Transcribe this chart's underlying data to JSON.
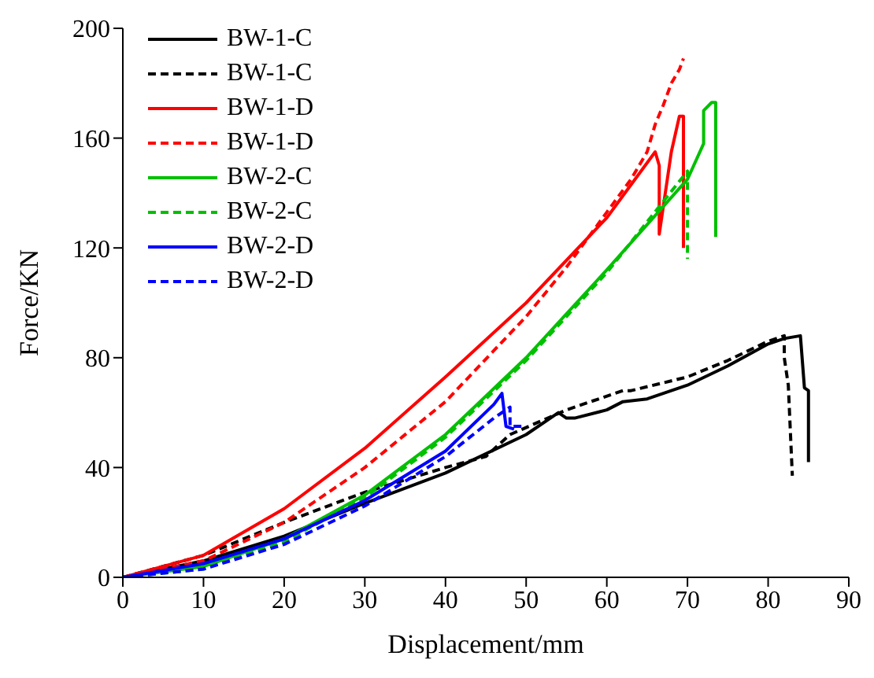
{
  "chart_data": {
    "type": "line",
    "xlabel": "Displacement/mm",
    "ylabel": "Force/KN",
    "xlim": [
      0,
      90
    ],
    "xticks": [
      0,
      10,
      20,
      30,
      40,
      50,
      60,
      70,
      80,
      90
    ],
    "ylim": [
      0,
      200
    ],
    "yticks": [
      0,
      40,
      80,
      120,
      160,
      200
    ],
    "grid": false,
    "legend": "top left",
    "marker": "none",
    "series": [
      {
        "name": "BW-1-C",
        "color": "#000000",
        "line_style": "solid",
        "x": [
          0,
          10,
          20,
          30,
          40,
          50,
          54,
          55,
          56,
          60,
          62,
          65,
          70,
          75,
          80,
          82,
          84,
          84.5,
          85,
          85
        ],
        "values": [
          0,
          6,
          15,
          27,
          38,
          52,
          60,
          58,
          58,
          61,
          64,
          65,
          70,
          77,
          85,
          87,
          88,
          69,
          68,
          42
        ]
      },
      {
        "name": "BW-1-C",
        "color": "#000000",
        "line_style": "dashed",
        "x": [
          0,
          10,
          20,
          30,
          40,
          45,
          48,
          55,
          62,
          63,
          70,
          75,
          80,
          82,
          82,
          82.5,
          83
        ],
        "values": [
          0,
          8,
          20,
          31,
          40,
          44,
          52,
          61,
          68,
          68,
          73,
          79,
          86,
          88,
          80,
          70,
          37
        ]
      },
      {
        "name": "BW-1-D",
        "color": "#ff0000",
        "line_style": "solid",
        "x": [
          0,
          10,
          20,
          30,
          40,
          50,
          60,
          66,
          66.5,
          66.5,
          67.5,
          68,
          69,
          69.5,
          69.5
        ],
        "values": [
          0,
          8,
          25,
          47,
          73,
          100,
          131,
          155,
          150,
          125,
          145,
          155,
          168,
          168,
          120
        ]
      },
      {
        "name": "BW-1-D",
        "color": "#ff0000",
        "line_style": "dashed",
        "x": [
          0,
          10,
          20,
          30,
          40,
          50,
          55,
          60,
          63,
          65,
          66,
          67,
          68,
          69,
          69.5
        ],
        "values": [
          0,
          6,
          20,
          40,
          64,
          95,
          113,
          133,
          145,
          155,
          165,
          172,
          180,
          185,
          189
        ]
      },
      {
        "name": "BW-2-C",
        "color": "#00c000",
        "line_style": "solid",
        "x": [
          0,
          10,
          20,
          30,
          40,
          50,
          60,
          70,
          72,
          72,
          73,
          73.5,
          73.5
        ],
        "values": [
          0,
          4,
          14,
          30,
          52,
          80,
          112,
          145,
          158,
          170,
          173,
          173,
          124
        ]
      },
      {
        "name": "BW-2-C",
        "color": "#00c000",
        "line_style": "dashed",
        "x": [
          0,
          10,
          20,
          30,
          40,
          50,
          60,
          70,
          70
        ],
        "values": [
          0,
          3,
          13,
          29,
          51,
          79,
          111,
          148,
          116
        ]
      },
      {
        "name": "BW-2-D",
        "color": "#0000ff",
        "line_style": "solid",
        "x": [
          0,
          10,
          20,
          30,
          40,
          46,
          47,
          47.5,
          48.5
        ],
        "values": [
          0,
          5,
          14,
          28,
          46,
          63,
          67,
          55,
          54
        ]
      },
      {
        "name": "BW-2-D",
        "color": "#0000ff",
        "line_style": "dashed",
        "x": [
          0,
          10,
          20,
          30,
          40,
          46,
          48,
          48,
          50
        ],
        "values": [
          0,
          3,
          12,
          26,
          44,
          58,
          62,
          55,
          55
        ]
      }
    ]
  }
}
